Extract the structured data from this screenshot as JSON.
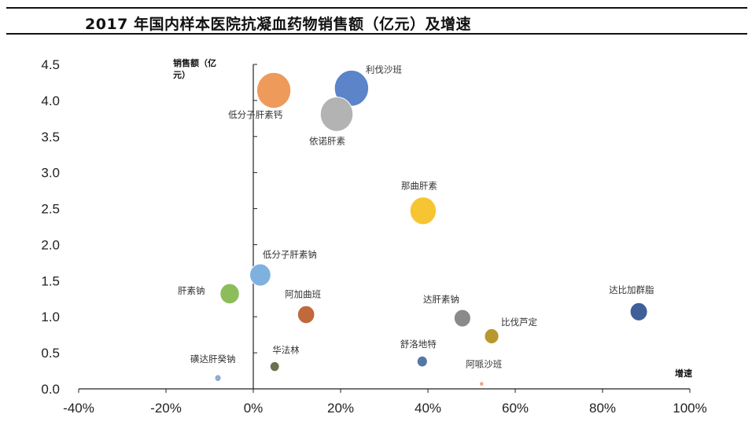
{
  "chart_data": {
    "type": "bubble",
    "title": "2017 年国内样本医院抗凝血药物销售额（亿元）及增速",
    "xlabel": "增速",
    "ylabel_lines": [
      "销售额（亿",
      "元）"
    ],
    "xlim": [
      -40,
      100
    ],
    "ylim": [
      0,
      4.5
    ],
    "x_ticks": [
      "-40%",
      "-20%",
      "0%",
      "20%",
      "40%",
      "60%",
      "80%",
      "100%"
    ],
    "x_tick_values": [
      -40,
      -20,
      0,
      20,
      40,
      60,
      80,
      100
    ],
    "y_ticks": [
      "0.0",
      "0.5",
      "1.0",
      "1.5",
      "2.0",
      "2.5",
      "3.0",
      "3.5",
      "4.0",
      "4.5"
    ],
    "y_tick_values": [
      0,
      0.5,
      1.0,
      1.5,
      2.0,
      2.5,
      3.0,
      3.5,
      4.0,
      4.5
    ],
    "bubble_size": "sales",
    "points": [
      {
        "name": "利伐沙班",
        "x": 22.5,
        "y": 4.17,
        "color": "#5b84c9"
      },
      {
        "name": "低分子肝素钙",
        "x": 4.7,
        "y": 4.14,
        "color": "#ed9a5a"
      },
      {
        "name": "依诺肝素",
        "x": 19.1,
        "y": 3.81,
        "color": "#b3b3b3"
      },
      {
        "name": "那曲肝素",
        "x": 38.9,
        "y": 2.47,
        "color": "#f7c531"
      },
      {
        "name": "低分子肝素钠",
        "x": 1.6,
        "y": 1.58,
        "color": "#7fb1e0"
      },
      {
        "name": "肝素钠",
        "x": -5.4,
        "y": 1.32,
        "color": "#8dbd5a"
      },
      {
        "name": "阿加曲班",
        "x": 12.1,
        "y": 1.03,
        "color": "#c0693a"
      },
      {
        "name": "达肝素钠",
        "x": 47.9,
        "y": 0.98,
        "color": "#8a8a8a"
      },
      {
        "name": "达比加群脂",
        "x": 88.3,
        "y": 1.07,
        "color": "#3f5f9a"
      },
      {
        "name": "比伐芦定",
        "x": 54.6,
        "y": 0.73,
        "color": "#b8972e"
      },
      {
        "name": "舒洛地特",
        "x": 38.7,
        "y": 0.38,
        "color": "#5577a8"
      },
      {
        "name": "华法林",
        "x": 4.9,
        "y": 0.31,
        "color": "#6f6f4f"
      },
      {
        "name": "磺达肝癸钠",
        "x": -8.1,
        "y": 0.15,
        "color": "#94acd2"
      },
      {
        "name": "阿哌沙班",
        "x": 52.3,
        "y": 0.07,
        "color": "#f0a890"
      }
    ]
  }
}
